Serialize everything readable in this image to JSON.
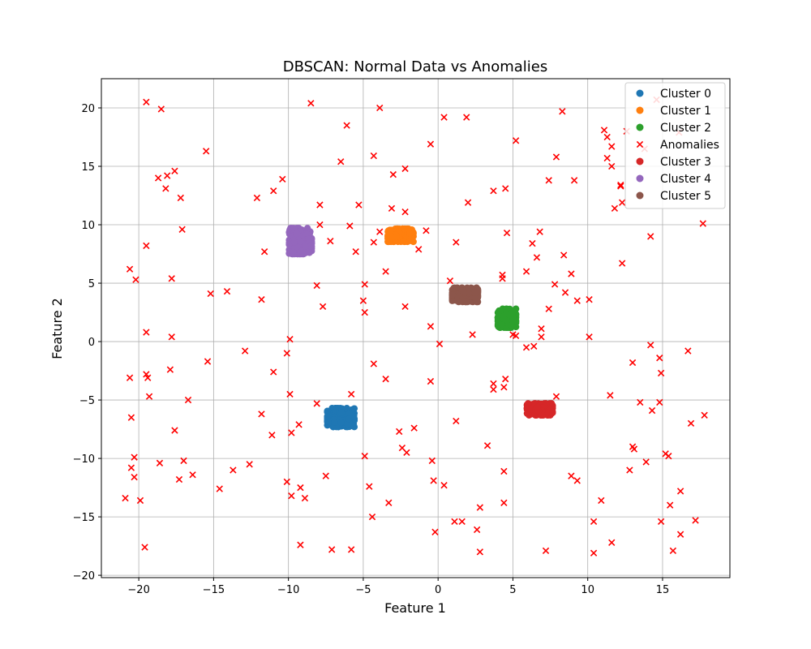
{
  "chart_data": {
    "type": "scatter",
    "title": "DBSCAN: Normal Data vs Anomalies",
    "xlabel": "Feature 1",
    "ylabel": "Feature 2",
    "xlim": [
      -22.5,
      19.5
    ],
    "ylim": [
      -20.2,
      22.5
    ],
    "xticks": [
      -20,
      -15,
      -10,
      -5,
      0,
      5,
      10,
      15
    ],
    "yticks": [
      -20,
      -15,
      -10,
      -5,
      0,
      5,
      10,
      15,
      20
    ],
    "grid": true,
    "legend_position": "top-right",
    "legend": [
      "Cluster 0",
      "Cluster 1",
      "Cluster 2",
      "Anomalies",
      "Cluster 3",
      "Cluster 4",
      "Cluster 5"
    ],
    "colors": {
      "Cluster 0": "#1f77b4",
      "Cluster 1": "#ff7f0e",
      "Cluster 2": "#2ca02c",
      "Anomalies": "#ff0000",
      "Cluster 3": "#d62728",
      "Cluster 4": "#9467bd",
      "Cluster 5": "#8c564b"
    },
    "clusters": [
      {
        "name": "Cluster 0",
        "center": [
          -6.5,
          -6.5
        ],
        "spread": [
          0.9,
          0.8
        ],
        "count": 250
      },
      {
        "name": "Cluster 1",
        "center": [
          -2.5,
          9.1
        ],
        "spread": [
          0.85,
          0.55
        ],
        "count": 250
      },
      {
        "name": "Cluster 2",
        "center": [
          4.6,
          2.0
        ],
        "spread": [
          0.6,
          0.8
        ],
        "count": 250
      },
      {
        "name": "Cluster 3",
        "center": [
          6.8,
          -5.8
        ],
        "spread": [
          0.85,
          0.5
        ],
        "count": 250
      },
      {
        "name": "Cluster 4",
        "center": [
          -9.2,
          8.6
        ],
        "spread": [
          0.75,
          1.1
        ],
        "count": 250
      },
      {
        "name": "Cluster 5",
        "center": [
          1.8,
          4.0
        ],
        "spread": [
          0.85,
          0.6
        ],
        "count": 250
      }
    ],
    "anomalies": [
      [
        -19.5,
        20.5
      ],
      [
        -18.5,
        19.9
      ],
      [
        -8.5,
        20.4
      ],
      [
        -3.9,
        20.0
      ],
      [
        0.4,
        19.2
      ],
      [
        1.9,
        19.2
      ],
      [
        8.3,
        19.7
      ],
      [
        14.6,
        20.7
      ],
      [
        -15.5,
        16.3
      ],
      [
        -6.1,
        18.5
      ],
      [
        -0.5,
        16.9
      ],
      [
        5.2,
        17.2
      ],
      [
        7.9,
        15.8
      ],
      [
        11.1,
        18.1
      ],
      [
        11.3,
        17.5
      ],
      [
        12.6,
        18.0
      ],
      [
        13.8,
        16.5
      ],
      [
        16.1,
        17.9
      ],
      [
        11.6,
        16.7
      ],
      [
        -18.7,
        14.0
      ],
      [
        -18.1,
        14.2
      ],
      [
        -17.6,
        14.6
      ],
      [
        -18.2,
        13.1
      ],
      [
        -10.4,
        13.9
      ],
      [
        -6.5,
        15.4
      ],
      [
        -4.3,
        15.9
      ],
      [
        -3.0,
        14.3
      ],
      [
        -2.2,
        14.8
      ],
      [
        3.7,
        12.9
      ],
      [
        4.5,
        13.1
      ],
      [
        7.4,
        13.8
      ],
      [
        9.1,
        13.8
      ],
      [
        11.3,
        15.7
      ],
      [
        11.6,
        15.0
      ],
      [
        12.2,
        13.4
      ],
      [
        -17.2,
        12.3
      ],
      [
        -12.1,
        12.3
      ],
      [
        -11.0,
        12.9
      ],
      [
        -7.9,
        11.7
      ],
      [
        -5.3,
        11.7
      ],
      [
        -3.1,
        11.4
      ],
      [
        -2.2,
        11.1
      ],
      [
        2.0,
        11.9
      ],
      [
        11.8,
        11.4
      ],
      [
        12.3,
        11.9
      ],
      [
        12.2,
        13.3
      ],
      [
        -19.5,
        8.2
      ],
      [
        -17.1,
        9.6
      ],
      [
        -7.9,
        10.0
      ],
      [
        -5.9,
        9.9
      ],
      [
        -7.2,
        8.6
      ],
      [
        -3.9,
        9.4
      ],
      [
        -4.3,
        8.5
      ],
      [
        -1.3,
        7.9
      ],
      [
        -0.8,
        9.5
      ],
      [
        1.2,
        8.5
      ],
      [
        4.6,
        9.3
      ],
      [
        6.8,
        9.4
      ],
      [
        6.3,
        8.4
      ],
      [
        8.4,
        7.4
      ],
      [
        14.2,
        9.0
      ],
      [
        17.7,
        10.1
      ],
      [
        -20.6,
        6.2
      ],
      [
        -20.2,
        5.3
      ],
      [
        -17.8,
        5.4
      ],
      [
        -11.6,
        7.7
      ],
      [
        -5.5,
        7.7
      ],
      [
        -3.5,
        6.0
      ],
      [
        -8.1,
        4.8
      ],
      [
        -7.7,
        3.0
      ],
      [
        -4.9,
        4.9
      ],
      [
        -15.2,
        4.1
      ],
      [
        -14.1,
        4.3
      ],
      [
        -11.8,
        3.6
      ],
      [
        -5.0,
        3.5
      ],
      [
        -4.9,
        2.5
      ],
      [
        0.8,
        5.2
      ],
      [
        4.3,
        5.7
      ],
      [
        4.3,
        5.4
      ],
      [
        5.9,
        6.0
      ],
      [
        6.6,
        7.2
      ],
      [
        12.3,
        6.7
      ],
      [
        7.8,
        4.9
      ],
      [
        8.5,
        4.2
      ],
      [
        8.9,
        5.8
      ],
      [
        9.3,
        3.5
      ],
      [
        10.1,
        3.6
      ],
      [
        7.4,
        2.8
      ],
      [
        -2.2,
        3.0
      ],
      [
        -19.5,
        0.8
      ],
      [
        -17.8,
        0.4
      ],
      [
        -9.9,
        0.2
      ],
      [
        -10.1,
        -1.0
      ],
      [
        -12.9,
        -0.8
      ],
      [
        -0.5,
        1.3
      ],
      [
        0.1,
        -0.2
      ],
      [
        2.3,
        0.6
      ],
      [
        5.2,
        0.5
      ],
      [
        5.0,
        0.6
      ],
      [
        6.9,
        1.1
      ],
      [
        6.9,
        0.4
      ],
      [
        10.1,
        0.4
      ],
      [
        14.2,
        -0.3
      ],
      [
        16.7,
        -0.8
      ],
      [
        -20.6,
        -3.1
      ],
      [
        -19.5,
        -2.8
      ],
      [
        -19.4,
        -3.1
      ],
      [
        -17.9,
        -2.4
      ],
      [
        -15.4,
        -1.7
      ],
      [
        -11.0,
        -2.6
      ],
      [
        -4.3,
        -1.9
      ],
      [
        -3.5,
        -3.2
      ],
      [
        -0.5,
        -3.4
      ],
      [
        3.7,
        -3.6
      ],
      [
        3.7,
        -4.1
      ],
      [
        4.5,
        -3.2
      ],
      [
        4.4,
        -3.9
      ],
      [
        5.9,
        -0.5
      ],
      [
        6.4,
        -0.4
      ],
      [
        13.0,
        -1.8
      ],
      [
        14.8,
        -1.4
      ],
      [
        14.9,
        -2.7
      ],
      [
        -20.5,
        -6.5
      ],
      [
        -19.3,
        -4.7
      ],
      [
        -16.7,
        -5.0
      ],
      [
        -17.6,
        -7.6
      ],
      [
        -11.8,
        -6.2
      ],
      [
        -11.1,
        -8.0
      ],
      [
        -9.9,
        -4.5
      ],
      [
        -9.8,
        -7.8
      ],
      [
        -9.3,
        -7.1
      ],
      [
        -8.1,
        -5.3
      ],
      [
        -5.8,
        -4.5
      ],
      [
        -2.6,
        -7.7
      ],
      [
        -1.6,
        -7.4
      ],
      [
        1.2,
        -6.8
      ],
      [
        7.9,
        -4.7
      ],
      [
        11.5,
        -4.6
      ],
      [
        13.5,
        -5.2
      ],
      [
        14.8,
        -5.2
      ],
      [
        14.3,
        -5.9
      ],
      [
        16.9,
        -7.0
      ],
      [
        17.8,
        -6.3
      ],
      [
        -20.3,
        -9.9
      ],
      [
        -20.5,
        -10.8
      ],
      [
        -20.3,
        -11.6
      ],
      [
        -18.6,
        -10.4
      ],
      [
        -17.0,
        -10.2
      ],
      [
        -16.4,
        -11.4
      ],
      [
        -17.3,
        -11.8
      ],
      [
        -13.7,
        -11.0
      ],
      [
        -12.6,
        -10.5
      ],
      [
        -14.6,
        -12.6
      ],
      [
        -10.1,
        -12.0
      ],
      [
        -9.8,
        -13.2
      ],
      [
        -9.2,
        -12.5
      ],
      [
        -8.9,
        -13.4
      ],
      [
        -7.5,
        -11.5
      ],
      [
        -4.9,
        -9.8
      ],
      [
        -4.6,
        -12.4
      ],
      [
        -2.4,
        -9.1
      ],
      [
        -2.1,
        -9.5
      ],
      [
        -0.4,
        -10.2
      ],
      [
        -0.3,
        -11.9
      ],
      [
        0.4,
        -12.3
      ],
      [
        3.3,
        -8.9
      ],
      [
        4.4,
        -11.1
      ],
      [
        8.9,
        -11.5
      ],
      [
        9.3,
        -11.9
      ],
      [
        12.8,
        -11.0
      ],
      [
        13.0,
        -9.0
      ],
      [
        13.1,
        -9.2
      ],
      [
        13.9,
        -10.3
      ],
      [
        15.2,
        -9.6
      ],
      [
        15.4,
        -9.8
      ],
      [
        -20.9,
        -13.4
      ],
      [
        -19.9,
        -13.6
      ],
      [
        -4.4,
        -15.0
      ],
      [
        -3.3,
        -13.8
      ],
      [
        1.1,
        -15.4
      ],
      [
        1.6,
        -15.4
      ],
      [
        2.8,
        -14.2
      ],
      [
        4.4,
        -13.8
      ],
      [
        10.9,
        -13.6
      ],
      [
        10.4,
        -15.4
      ],
      [
        15.5,
        -14.0
      ],
      [
        16.2,
        -12.8
      ],
      [
        17.2,
        -15.3
      ],
      [
        14.9,
        -15.4
      ],
      [
        16.2,
        -16.5
      ],
      [
        -19.6,
        -17.6
      ],
      [
        -9.2,
        -17.4
      ],
      [
        -7.1,
        -17.8
      ],
      [
        -5.8,
        -17.8
      ],
      [
        -0.2,
        -16.3
      ],
      [
        2.6,
        -16.1
      ],
      [
        2.8,
        -18.0
      ],
      [
        7.2,
        -17.9
      ],
      [
        10.4,
        -18.1
      ],
      [
        11.6,
        -17.2
      ],
      [
        15.7,
        -17.9
      ]
    ]
  }
}
